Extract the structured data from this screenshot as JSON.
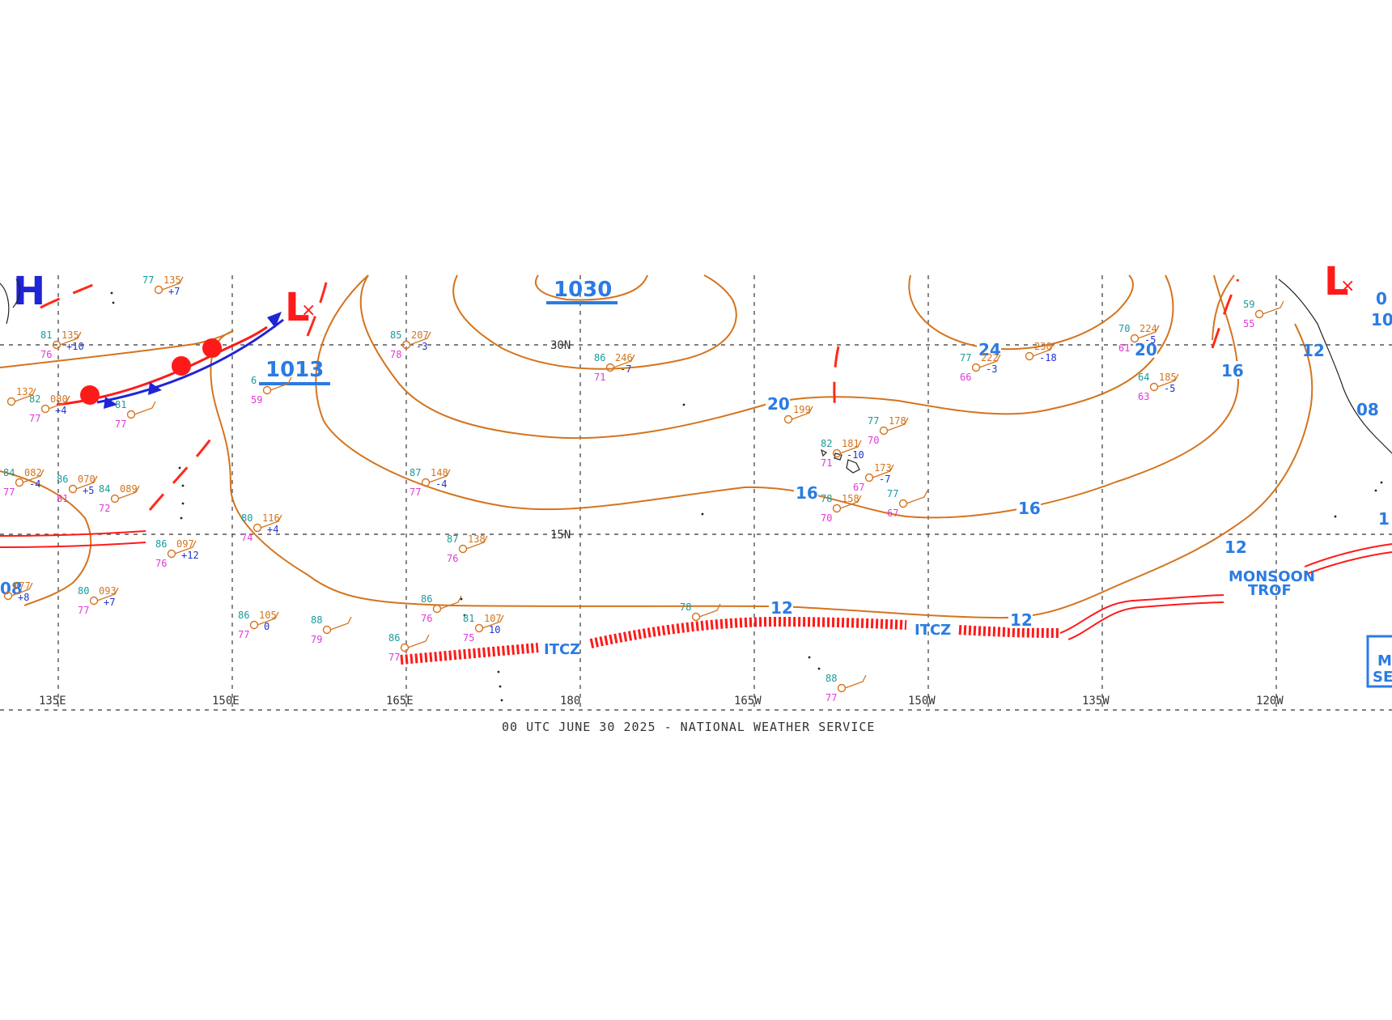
{
  "map": {
    "footer": "00 UTC JUNE 30 2025 - NATIONAL WEATHER SERVICE",
    "longitude_labels": [
      "135E",
      "150E",
      "165E",
      "180",
      "165W",
      "150W",
      "135W",
      "120W"
    ],
    "latitude_labels": [
      "30N",
      "15N"
    ],
    "pressure_centers": [
      {
        "type": "H",
        "value": ""
      },
      {
        "type": "L",
        "value": ""
      },
      {
        "type": "L",
        "value": ""
      }
    ],
    "center_values": [
      "1013",
      "1030"
    ],
    "isobar_labels": [
      "20",
      "16",
      "16",
      "12",
      "12",
      "12",
      "24",
      "20",
      "16",
      "12",
      "08",
      "08",
      "1",
      "10",
      "0"
    ],
    "features": {
      "itcz": "ITCZ",
      "itcz2": "ITCZ",
      "monsoon_line1": "MONSOON",
      "monsoon_line2": "TROF"
    },
    "stations": [
      {
        "id": "s1",
        "temp": "77",
        "pres": "135",
        "dew": "",
        "tend": "+7"
      },
      {
        "id": "s2",
        "temp": "81",
        "pres": "135",
        "dew": "76",
        "tend": "+10"
      },
      {
        "id": "s3",
        "temp": "82",
        "pres": "080",
        "dew": "77",
        "tend": "+4"
      },
      {
        "id": "s4",
        "temp": "",
        "pres": "132",
        "dew": "",
        "tend": ""
      },
      {
        "id": "s5",
        "temp": "81",
        "pres": "",
        "dew": "77",
        "tend": ""
      },
      {
        "id": "s6",
        "temp": "84",
        "pres": "082",
        "dew": "77",
        "tend": "-4"
      },
      {
        "id": "s7",
        "temp": "86",
        "pres": "070",
        "dew": "81",
        "tend": "+5"
      },
      {
        "id": "s8",
        "temp": "84",
        "pres": "089",
        "dew": "72",
        "tend": ""
      },
      {
        "id": "s9",
        "temp": "86",
        "pres": "097",
        "dew": "76",
        "tend": "+12"
      },
      {
        "id": "s10",
        "temp": "80",
        "pres": "093",
        "dew": "77",
        "tend": "+7"
      },
      {
        "id": "s11",
        "temp": "",
        "pres": "077",
        "dew": "",
        "tend": "+8"
      },
      {
        "id": "s12",
        "temp": "80",
        "pres": "116",
        "dew": "74",
        "tend": "+4"
      },
      {
        "id": "s13",
        "temp": "86",
        "pres": "105",
        "dew": "77",
        "tend": "0"
      },
      {
        "id": "s14",
        "temp": "88",
        "pres": "",
        "dew": "79",
        "tend": ""
      },
      {
        "id": "s15",
        "temp": "85",
        "pres": "207",
        "dew": "78",
        "tend": "-3"
      },
      {
        "id": "s16",
        "temp": "87",
        "pres": "148",
        "dew": "77",
        "tend": "-4"
      },
      {
        "id": "s17",
        "temp": "87",
        "pres": "138",
        "dew": "76",
        "tend": ""
      },
      {
        "id": "s18",
        "temp": "86",
        "pres": "",
        "dew": "76",
        "tend": ""
      },
      {
        "id": "s19",
        "temp": "81",
        "pres": "107",
        "dew": "75",
        "tend": "10"
      },
      {
        "id": "s20",
        "temp": "86",
        "pres": "",
        "dew": "77",
        "tend": ""
      },
      {
        "id": "s21",
        "temp": "86",
        "pres": "246",
        "dew": "71",
        "tend": "-7"
      },
      {
        "id": "s22",
        "temp": "78",
        "pres": "",
        "dew": "",
        "tend": ""
      },
      {
        "id": "s23",
        "temp": "",
        "pres": "199",
        "dew": "",
        "tend": ""
      },
      {
        "id": "s24",
        "temp": "82",
        "pres": "181",
        "dew": "71",
        "tend": "-10"
      },
      {
        "id": "s25",
        "temp": "77",
        "pres": "178",
        "dew": "70",
        "tend": ""
      },
      {
        "id": "s26",
        "temp": "",
        "pres": "173",
        "dew": "67",
        "tend": "-7"
      },
      {
        "id": "s27",
        "temp": "78",
        "pres": "158",
        "dew": "70",
        "tend": ""
      },
      {
        "id": "s28",
        "temp": "77",
        "pres": "",
        "dew": "67",
        "tend": ""
      },
      {
        "id": "s29",
        "temp": "88",
        "pres": "",
        "dew": "77",
        "tend": ""
      },
      {
        "id": "s30",
        "temp": "77",
        "pres": "222",
        "dew": "66",
        "tend": "-3"
      },
      {
        "id": "s31",
        "temp": "",
        "pres": "230",
        "dew": "",
        "tend": "-18"
      },
      {
        "id": "s32",
        "temp": "70",
        "pres": "224",
        "dew": "61",
        "tend": "-5"
      },
      {
        "id": "s33",
        "temp": "64",
        "pres": "185",
        "dew": "63",
        "tend": "-5"
      },
      {
        "id": "s34",
        "temp": "6",
        "pres": "",
        "dew": "59",
        "tend": ""
      },
      {
        "id": "s35",
        "temp": "59",
        "pres": "",
        "dew": "55",
        "tend": ""
      }
    ],
    "sea_state_box": {
      "line1": "M",
      "line2": "SE"
    },
    "colors": {
      "isobar": "#d4741e",
      "label": "#2b7be4",
      "front_cold": "#1f24d6",
      "front_warm": "#ff1a1a",
      "itcz": "#ff1a1a",
      "grid": "#555555"
    }
  }
}
